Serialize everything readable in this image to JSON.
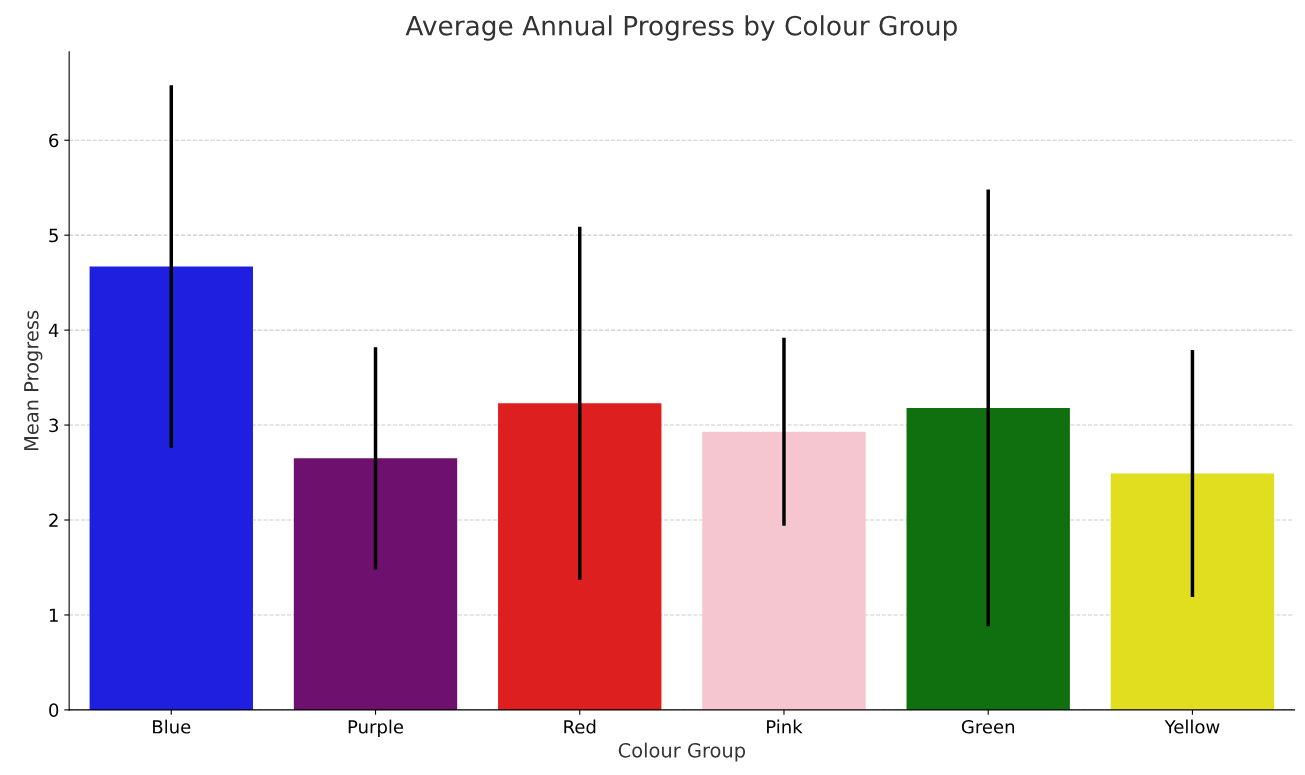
{
  "chart_data": {
    "type": "bar",
    "title": "Average Annual Progress by Colour Group",
    "xlabel": "Colour Group",
    "ylabel": "Mean Progress",
    "categories": [
      "Blue",
      "Purple",
      "Red",
      "Pink",
      "Green",
      "Yellow"
    ],
    "values": [
      4.67,
      2.65,
      3.23,
      2.93,
      3.18,
      2.49
    ],
    "errors": [
      1.91,
      1.17,
      1.86,
      0.99,
      2.3,
      1.3
    ],
    "colors": [
      "#1f1fe0",
      "#6e106e",
      "#de1f1f",
      "#f5c6cf",
      "#107010",
      "#e0de1f"
    ],
    "ylim": [
      0,
      6.93
    ],
    "yticks": [
      0,
      1,
      2,
      3,
      4,
      5,
      6
    ],
    "grid": "y"
  }
}
